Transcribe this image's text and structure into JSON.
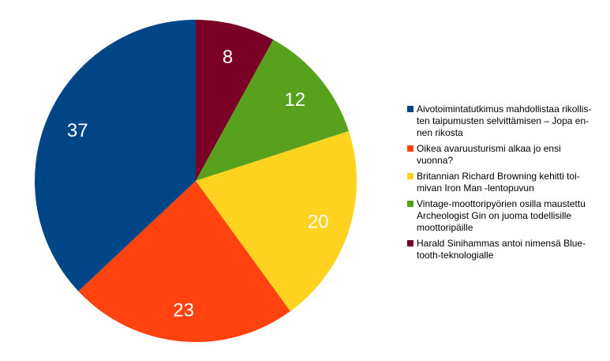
{
  "chart_data": {
    "type": "pie",
    "values": [
      8,
      12,
      20,
      23,
      37
    ],
    "categories": [
      "Harald Sinihammas antoi nimensä Blue-\ntooth-teknologialle",
      "Vintage-moottoripyörien osilla maustettu\nArcheologist Gin on juoma todellisille\nmoottoripäille",
      "Britannian Richard Browning kehitti toi-\nmivan Iron Man -lentopuvun",
      "Oikea avaruusturismi alkaa jo ensi\nvuonna?",
      "Aivotoimintatutkimus mahdollistaa rikollis-\nten taipumusten selvittämisen – Jopa en-\nnen rikosta"
    ],
    "colors": [
      "#7b0026",
      "#57a11d",
      "#ffd320",
      "#ff420e",
      "#004586"
    ],
    "legend_order": [
      4,
      3,
      2,
      1,
      0
    ],
    "legend_position": "right"
  }
}
